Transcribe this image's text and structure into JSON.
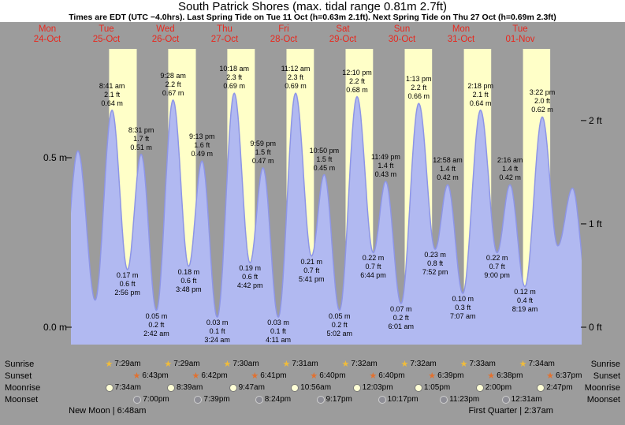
{
  "title": "South Patrick Shores (max. tidal range 0.81m 2.7ft)",
  "subtitle": "Times are EDT (UTC −4.0hrs). Last Spring Tide on Tue 11 Oct (h=0.63m 2.1ft). Next Spring Tide on Thu 27 Oct (h=0.69m 2.3ft)",
  "colors": {
    "background": "#9c9c9c",
    "title_band": "#ffffff",
    "daylight_band": "#ffffc8",
    "tide_fill": "#b1b9f1",
    "tide_stroke": "#8d95e6",
    "day_label": "#e8281e",
    "text": "#000000",
    "sunrise_star": "#f0bc3a",
    "sunset_star": "#e2712f",
    "moonrise_circle": "#ffffd6",
    "moonset_circle": "#8e8e96"
  },
  "days": [
    {
      "name": "Mon",
      "date": "24-Oct"
    },
    {
      "name": "Tue",
      "date": "25-Oct"
    },
    {
      "name": "Wed",
      "date": "26-Oct"
    },
    {
      "name": "Thu",
      "date": "27-Oct"
    },
    {
      "name": "Fri",
      "date": "28-Oct"
    },
    {
      "name": "Sat",
      "date": "29-Oct"
    },
    {
      "name": "Sun",
      "date": "30-Oct"
    },
    {
      "name": "Mon",
      "date": "31-Oct"
    },
    {
      "name": "Tue",
      "date": "01-Nov"
    }
  ],
  "y_axis": {
    "left_labels": [
      {
        "text": "0.5 m",
        "value": 0.5
      },
      {
        "text": "0.0 m",
        "value": 0.0
      }
    ],
    "right_labels": [
      {
        "text": "2 ft",
        "value": 0.6096
      },
      {
        "text": "1 ft",
        "value": 0.3048
      },
      {
        "text": "0 ft",
        "value": 0.0
      }
    ]
  },
  "chart_data": {
    "type": "area",
    "title": "South Patrick Shores tide curve, Mon 24 Oct - Tue 01 Nov",
    "ylabel_left": "m",
    "ylabel_right": "ft",
    "ylim_m": [
      0,
      0.87
    ],
    "tide_events": [
      {
        "day": 1,
        "time": "08:41",
        "type": "high",
        "height_m": 0.64,
        "label_time": "8:41 am",
        "label_ft": "2.1 ft",
        "label_m": "0.64 m"
      },
      {
        "day": 1,
        "time": "14:56",
        "type": "low",
        "height_m": 0.17,
        "label_time": "2:56 pm",
        "label_ft": "0.6 ft",
        "label_m": "0.17 m"
      },
      {
        "day": 1,
        "time": "20:31",
        "type": "high",
        "height_m": 0.51,
        "label_time": "8:31 pm",
        "label_ft": "1.7 ft",
        "label_m": "0.51 m"
      },
      {
        "day": 2,
        "time": "02:42",
        "type": "low",
        "height_m": 0.05,
        "label_time": "2:42 am",
        "label_ft": "0.2 ft",
        "label_m": "0.05 m"
      },
      {
        "day": 2,
        "time": "09:28",
        "type": "high",
        "height_m": 0.67,
        "label_time": "9:28 am",
        "label_ft": "2.2 ft",
        "label_m": "0.67 m"
      },
      {
        "day": 2,
        "time": "15:48",
        "type": "low",
        "height_m": 0.18,
        "label_time": "3:48 pm",
        "label_ft": "0.6 ft",
        "label_m": "0.18 m"
      },
      {
        "day": 2,
        "time": "21:13",
        "type": "high",
        "height_m": 0.49,
        "label_time": "9:13 pm",
        "label_ft": "1.6 ft",
        "label_m": "0.49 m"
      },
      {
        "day": 3,
        "time": "03:24",
        "type": "low",
        "height_m": 0.03,
        "label_time": "3:24 am",
        "label_ft": "0.1 ft",
        "label_m": "0.03 m"
      },
      {
        "day": 3,
        "time": "10:18",
        "type": "high",
        "height_m": 0.69,
        "label_time": "10:18 am",
        "label_ft": "2.3 ft",
        "label_m": "0.69 m"
      },
      {
        "day": 3,
        "time": "16:42",
        "type": "low",
        "height_m": 0.19,
        "label_time": "4:42 pm",
        "label_ft": "0.6 ft",
        "label_m": "0.19 m"
      },
      {
        "day": 3,
        "time": "21:59",
        "type": "high",
        "height_m": 0.47,
        "label_time": "9:59 pm",
        "label_ft": "1.5 ft",
        "label_m": "0.47 m"
      },
      {
        "day": 4,
        "time": "04:11",
        "type": "low",
        "height_m": 0.03,
        "label_time": "4:11 am",
        "label_ft": "0.1 ft",
        "label_m": "0.03 m"
      },
      {
        "day": 4,
        "time": "11:12",
        "type": "high",
        "height_m": 0.69,
        "label_time": "11:12 am",
        "label_ft": "2.3 ft",
        "label_m": "0.69 m"
      },
      {
        "day": 4,
        "time": "17:41",
        "type": "low",
        "height_m": 0.21,
        "label_time": "5:41 pm",
        "label_ft": "0.7 ft",
        "label_m": "0.21 m"
      },
      {
        "day": 4,
        "time": "22:50",
        "type": "high",
        "height_m": 0.45,
        "label_time": "10:50 pm",
        "label_ft": "1.5 ft",
        "label_m": "0.45 m"
      },
      {
        "day": 5,
        "time": "05:02",
        "type": "low",
        "height_m": 0.05,
        "label_time": "5:02 am",
        "label_ft": "0.2 ft",
        "label_m": "0.05 m"
      },
      {
        "day": 5,
        "time": "12:10",
        "type": "high",
        "height_m": 0.68,
        "label_time": "12:10 pm",
        "label_ft": "2.2 ft",
        "label_m": "0.68 m"
      },
      {
        "day": 5,
        "time": "18:44",
        "type": "low",
        "height_m": 0.22,
        "label_time": "6:44 pm",
        "label_ft": "0.7 ft",
        "label_m": "0.22 m"
      },
      {
        "day": 5,
        "time": "23:49",
        "type": "high",
        "height_m": 0.43,
        "label_time": "11:49 pm",
        "label_ft": "1.4 ft",
        "label_m": "0.43 m"
      },
      {
        "day": 6,
        "time": "06:01",
        "type": "low",
        "height_m": 0.07,
        "label_time": "6:01 am",
        "label_ft": "0.2 ft",
        "label_m": "0.07 m"
      },
      {
        "day": 6,
        "time": "13:13",
        "type": "high",
        "height_m": 0.66,
        "label_time": "1:13 pm",
        "label_ft": "2.2 ft",
        "label_m": "0.66 m"
      },
      {
        "day": 6,
        "time": "19:52",
        "type": "low",
        "height_m": 0.23,
        "label_time": "7:52 pm",
        "label_ft": "0.8 ft",
        "label_m": "0.23 m"
      },
      {
        "day": 7,
        "time": "00:58",
        "type": "high",
        "height_m": 0.42,
        "label_time": "12:58 am",
        "label_ft": "1.4 ft",
        "label_m": "0.42 m"
      },
      {
        "day": 7,
        "time": "07:07",
        "type": "low",
        "height_m": 0.1,
        "label_time": "7:07 am",
        "label_ft": "0.3 ft",
        "label_m": "0.10 m"
      },
      {
        "day": 7,
        "time": "14:18",
        "type": "high",
        "height_m": 0.64,
        "label_time": "2:18 pm",
        "label_ft": "2.1 ft",
        "label_m": "0.64 m"
      },
      {
        "day": 7,
        "time": "21:00",
        "type": "low",
        "height_m": 0.22,
        "label_time": "9:00 pm",
        "label_ft": "0.7 ft",
        "label_m": "0.22 m"
      },
      {
        "day": 8,
        "time": "02:16",
        "type": "high",
        "height_m": 0.42,
        "label_time": "2:16 am",
        "label_ft": "1.4 ft",
        "label_m": "0.42 m"
      },
      {
        "day": 8,
        "time": "08:19",
        "type": "low",
        "height_m": 0.12,
        "label_time": "8:19 am",
        "label_ft": "0.4 ft",
        "label_m": "0.12 m"
      },
      {
        "day": 8,
        "time": "15:22",
        "type": "high",
        "height_m": 0.62,
        "label_time": "3:22 pm",
        "label_ft": "2.0 ft",
        "label_m": "0.62 m"
      }
    ],
    "curve_edge_anchors": [
      {
        "day": 0,
        "time": "07:50",
        "height_m": 0.62
      },
      {
        "day": 0,
        "time": "12:40",
        "height_m": 0.15
      },
      {
        "day": 0,
        "time": "18:50",
        "height_m": 0.52
      },
      {
        "day": 1,
        "time": "01:50",
        "height_m": 0.08
      },
      {
        "day": 8,
        "time": "21:40",
        "height_m": 0.24
      },
      {
        "day": 9,
        "time": "03:40",
        "height_m": 0.41
      },
      {
        "day": 9,
        "time": "09:40",
        "height_m": 0.12
      }
    ]
  },
  "astronomy": {
    "rows": [
      {
        "label": "Sunrise",
        "icon": "sunrise-star",
        "entries": [
          {
            "day": 1,
            "time": "07:29",
            "text": "7:29am"
          },
          {
            "day": 2,
            "time": "07:29",
            "text": "7:29am"
          },
          {
            "day": 3,
            "time": "07:30",
            "text": "7:30am"
          },
          {
            "day": 4,
            "time": "07:31",
            "text": "7:31am"
          },
          {
            "day": 5,
            "time": "07:32",
            "text": "7:32am"
          },
          {
            "day": 6,
            "time": "07:32",
            "text": "7:32am"
          },
          {
            "day": 7,
            "time": "07:33",
            "text": "7:33am"
          },
          {
            "day": 8,
            "time": "07:34",
            "text": "7:34am"
          }
        ]
      },
      {
        "label": "Sunset",
        "icon": "sunset-star",
        "entries": [
          {
            "day": 1,
            "time": "18:43",
            "text": "6:43pm"
          },
          {
            "day": 2,
            "time": "18:42",
            "text": "6:42pm"
          },
          {
            "day": 3,
            "time": "18:41",
            "text": "6:41pm"
          },
          {
            "day": 4,
            "time": "18:40",
            "text": "6:40pm"
          },
          {
            "day": 5,
            "time": "18:40",
            "text": "6:40pm"
          },
          {
            "day": 6,
            "time": "18:39",
            "text": "6:39pm"
          },
          {
            "day": 7,
            "time": "18:38",
            "text": "6:38pm"
          },
          {
            "day": 8,
            "time": "18:37",
            "text": "6:37pm"
          }
        ]
      },
      {
        "label": "Moonrise",
        "icon": "moonrise-circle",
        "entries": [
          {
            "day": 1,
            "time": "07:34",
            "text": "7:34am"
          },
          {
            "day": 2,
            "time": "08:39",
            "text": "8:39am"
          },
          {
            "day": 3,
            "time": "09:47",
            "text": "9:47am"
          },
          {
            "day": 4,
            "time": "10:56",
            "text": "10:56am"
          },
          {
            "day": 5,
            "time": "12:03",
            "text": "12:03pm"
          },
          {
            "day": 6,
            "time": "13:05",
            "text": "1:05pm"
          },
          {
            "day": 7,
            "time": "14:00",
            "text": "2:00pm"
          },
          {
            "day": 8,
            "time": "14:47",
            "text": "2:47pm"
          }
        ]
      },
      {
        "label": "Moonset",
        "icon": "moonset-circle",
        "entries": [
          {
            "day": 1,
            "time": "19:00",
            "text": "7:00pm"
          },
          {
            "day": 2,
            "time": "19:39",
            "text": "7:39pm"
          },
          {
            "day": 3,
            "time": "20:24",
            "text": "8:24pm"
          },
          {
            "day": 4,
            "time": "21:17",
            "text": "9:17pm"
          },
          {
            "day": 5,
            "time": "22:17",
            "text": "10:17pm"
          },
          {
            "day": 6,
            "time": "23:23",
            "text": "11:23pm"
          },
          {
            "day": 8,
            "time": "00:31",
            "text": "12:31am"
          }
        ]
      }
    ],
    "phases": [
      {
        "name": "New Moon",
        "time": "6:48am",
        "day": 1,
        "time24": "06:48"
      },
      {
        "name": "First Quarter",
        "time": "2:37am",
        "day": 8,
        "time24": "02:37"
      }
    ]
  }
}
